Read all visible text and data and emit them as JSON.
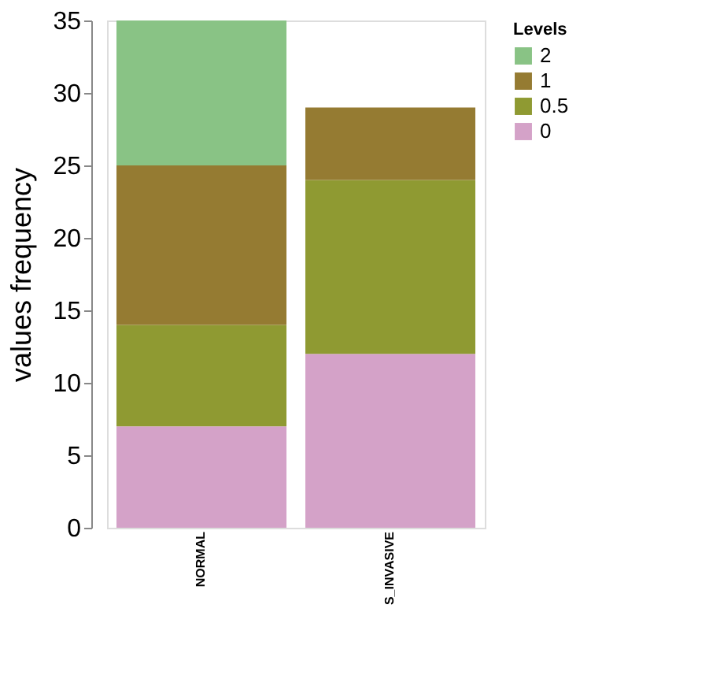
{
  "chart_data": {
    "type": "bar",
    "stacked": true,
    "ylabel": "values frequency",
    "legend_title": "Levels",
    "legend": "top right",
    "grid": false,
    "categories": [
      "NORMAL",
      "S_INVASIVE"
    ],
    "ylim": [
      0,
      35
    ],
    "yticks": [
      0,
      5,
      10,
      15,
      20,
      25,
      30,
      35
    ],
    "series": [
      {
        "name": "0",
        "color": "#d4a2c8",
        "values": [
          7,
          12
        ]
      },
      {
        "name": "0.5",
        "color": "#8f9a32",
        "values": [
          7,
          12
        ]
      },
      {
        "name": "1",
        "color": "#957b32",
        "values": [
          11,
          5
        ]
      },
      {
        "name": "2",
        "color": "#89c385",
        "values": [
          10,
          0
        ]
      }
    ]
  }
}
